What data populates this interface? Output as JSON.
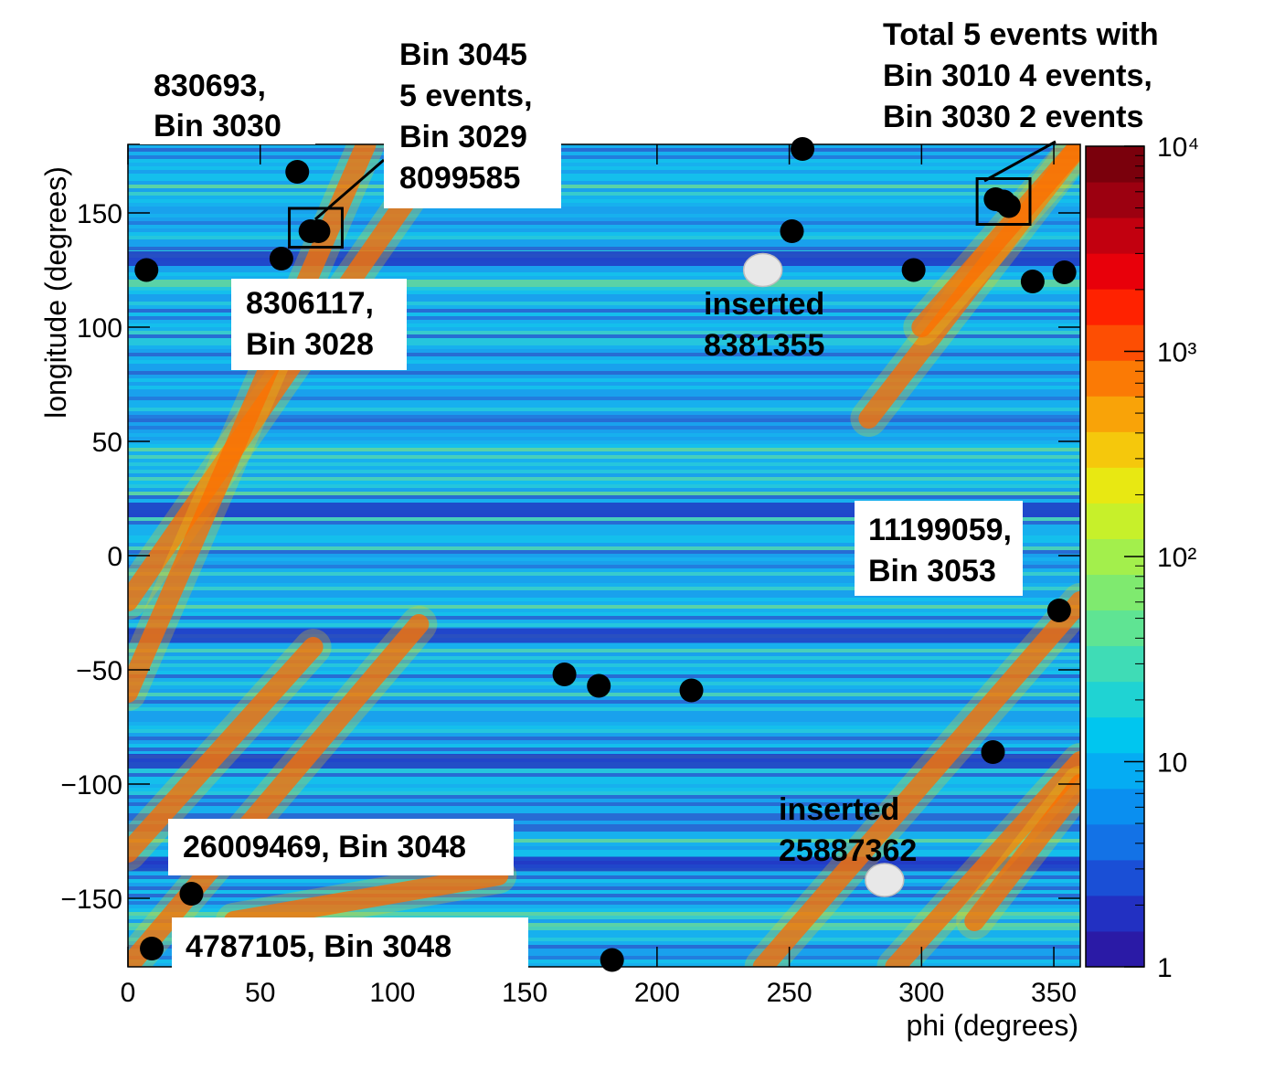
{
  "chart_data": {
    "type": "heatmap",
    "xlabel": "phi (degrees)",
    "ylabel": "longitude (degrees)",
    "xlim": [
      0,
      360
    ],
    "ylim": [
      -180,
      180
    ],
    "x_ticks": [
      "0",
      "50",
      "100",
      "150",
      "200",
      "250",
      "300",
      "350"
    ],
    "y_ticks": [
      "−150",
      "−100",
      "−50",
      "0",
      "50",
      "100",
      "150"
    ],
    "x_tick_values": [
      0,
      50,
      100,
      150,
      200,
      250,
      300,
      350
    ],
    "y_tick_values": [
      -150,
      -100,
      -50,
      0,
      50,
      100,
      150
    ],
    "colorbar": {
      "scale": "log",
      "range": [
        1,
        10000
      ],
      "tick_labels": [
        "1",
        "10",
        "10²",
        "10³",
        "10⁴"
      ],
      "tick_values": [
        1,
        10,
        100,
        1000,
        10000
      ],
      "colors": [
        "#2a1aa6",
        "#2230c2",
        "#1a4fd6",
        "#1372e6",
        "#0a8ff0",
        "#05acf3",
        "#00c6ef",
        "#1fd3d3",
        "#3fdcb6",
        "#5fe493",
        "#7fea6f",
        "#a3ef4c",
        "#c7f02a",
        "#e8e812",
        "#f5c80c",
        "#f9a308",
        "#fb7a05",
        "#fd4e03",
        "#ff2200",
        "#e8000a",
        "#c2000f",
        "#9c0010",
        "#7a000c"
      ],
      "background": "#2eb6e8"
    },
    "bands": [
      {
        "x": [
          0,
          120
        ],
        "y": [
          -150,
          180
        ],
        "weight": "high"
      },
      {
        "x": [
          0,
          105
        ],
        "y": [
          -180,
          -35
        ],
        "weight": "high"
      },
      {
        "x": [
          235,
          360
        ],
        "y": [
          -175,
          30
        ],
        "weight": "high"
      },
      {
        "x": [
          290,
          360
        ],
        "y": [
          90,
          180
        ],
        "weight": "high"
      },
      {
        "x": [
          260,
          360
        ],
        "y": [
          -180,
          -60
        ],
        "weight": "high"
      },
      {
        "x": [
          310,
          360
        ],
        "y": [
          -160,
          -20
        ],
        "weight": "medium"
      }
    ],
    "events": [
      {
        "x": 7,
        "y": 125,
        "color": "black"
      },
      {
        "x": 64,
        "y": 168,
        "color": "black"
      },
      {
        "x": 58,
        "y": 130,
        "color": "black"
      },
      {
        "x": 69,
        "y": 142,
        "color": "black"
      },
      {
        "x": 72,
        "y": 142,
        "color": "black"
      },
      {
        "x": 255,
        "y": 178,
        "color": "black"
      },
      {
        "x": 251,
        "y": 142,
        "color": "black"
      },
      {
        "x": 297,
        "y": 125,
        "color": "black"
      },
      {
        "x": 328,
        "y": 156,
        "color": "black"
      },
      {
        "x": 331,
        "y": 155,
        "color": "black"
      },
      {
        "x": 333,
        "y": 153,
        "color": "black"
      },
      {
        "x": 342,
        "y": 120,
        "color": "black"
      },
      {
        "x": 354,
        "y": 124,
        "color": "black"
      },
      {
        "x": 352,
        "y": -24,
        "color": "black"
      },
      {
        "x": 165,
        "y": -52,
        "color": "black"
      },
      {
        "x": 178,
        "y": -57,
        "color": "black"
      },
      {
        "x": 213,
        "y": -59,
        "color": "black"
      },
      {
        "x": 327,
        "y": -86,
        "color": "black"
      },
      {
        "x": 24,
        "y": -148,
        "color": "black"
      },
      {
        "x": 9,
        "y": -172,
        "color": "black"
      },
      {
        "x": 183,
        "y": -177,
        "color": "black"
      },
      {
        "x": 240,
        "y": 125,
        "color": "white"
      },
      {
        "x": 286,
        "y": -142,
        "color": "white"
      }
    ],
    "boxes": [
      {
        "x": [
          61,
          81
        ],
        "y": [
          135,
          152
        ]
      },
      {
        "x": [
          321,
          341
        ],
        "y": [
          145,
          165
        ]
      }
    ],
    "annotations": [
      {
        "lines": [
          "830693,",
          "Bin 3030"
        ]
      },
      {
        "lines": [
          "Bin 3045",
          "5 events,",
          "Bin 3029",
          "8099585"
        ]
      },
      {
        "lines": [
          "8306117,",
          "Bin 3028"
        ]
      },
      {
        "lines": [
          "Total 5 events with",
          "Bin 3010 4 events,",
          "Bin 3030 2 events"
        ]
      },
      {
        "lines": [
          "inserted",
          "8381355"
        ]
      },
      {
        "lines": [
          "11199059,",
          "Bin 3053"
        ]
      },
      {
        "lines": [
          "inserted",
          "25887362"
        ]
      },
      {
        "lines": [
          "26009469, Bin 3048"
        ]
      },
      {
        "lines": [
          "4787105, Bin 3048"
        ]
      }
    ]
  }
}
